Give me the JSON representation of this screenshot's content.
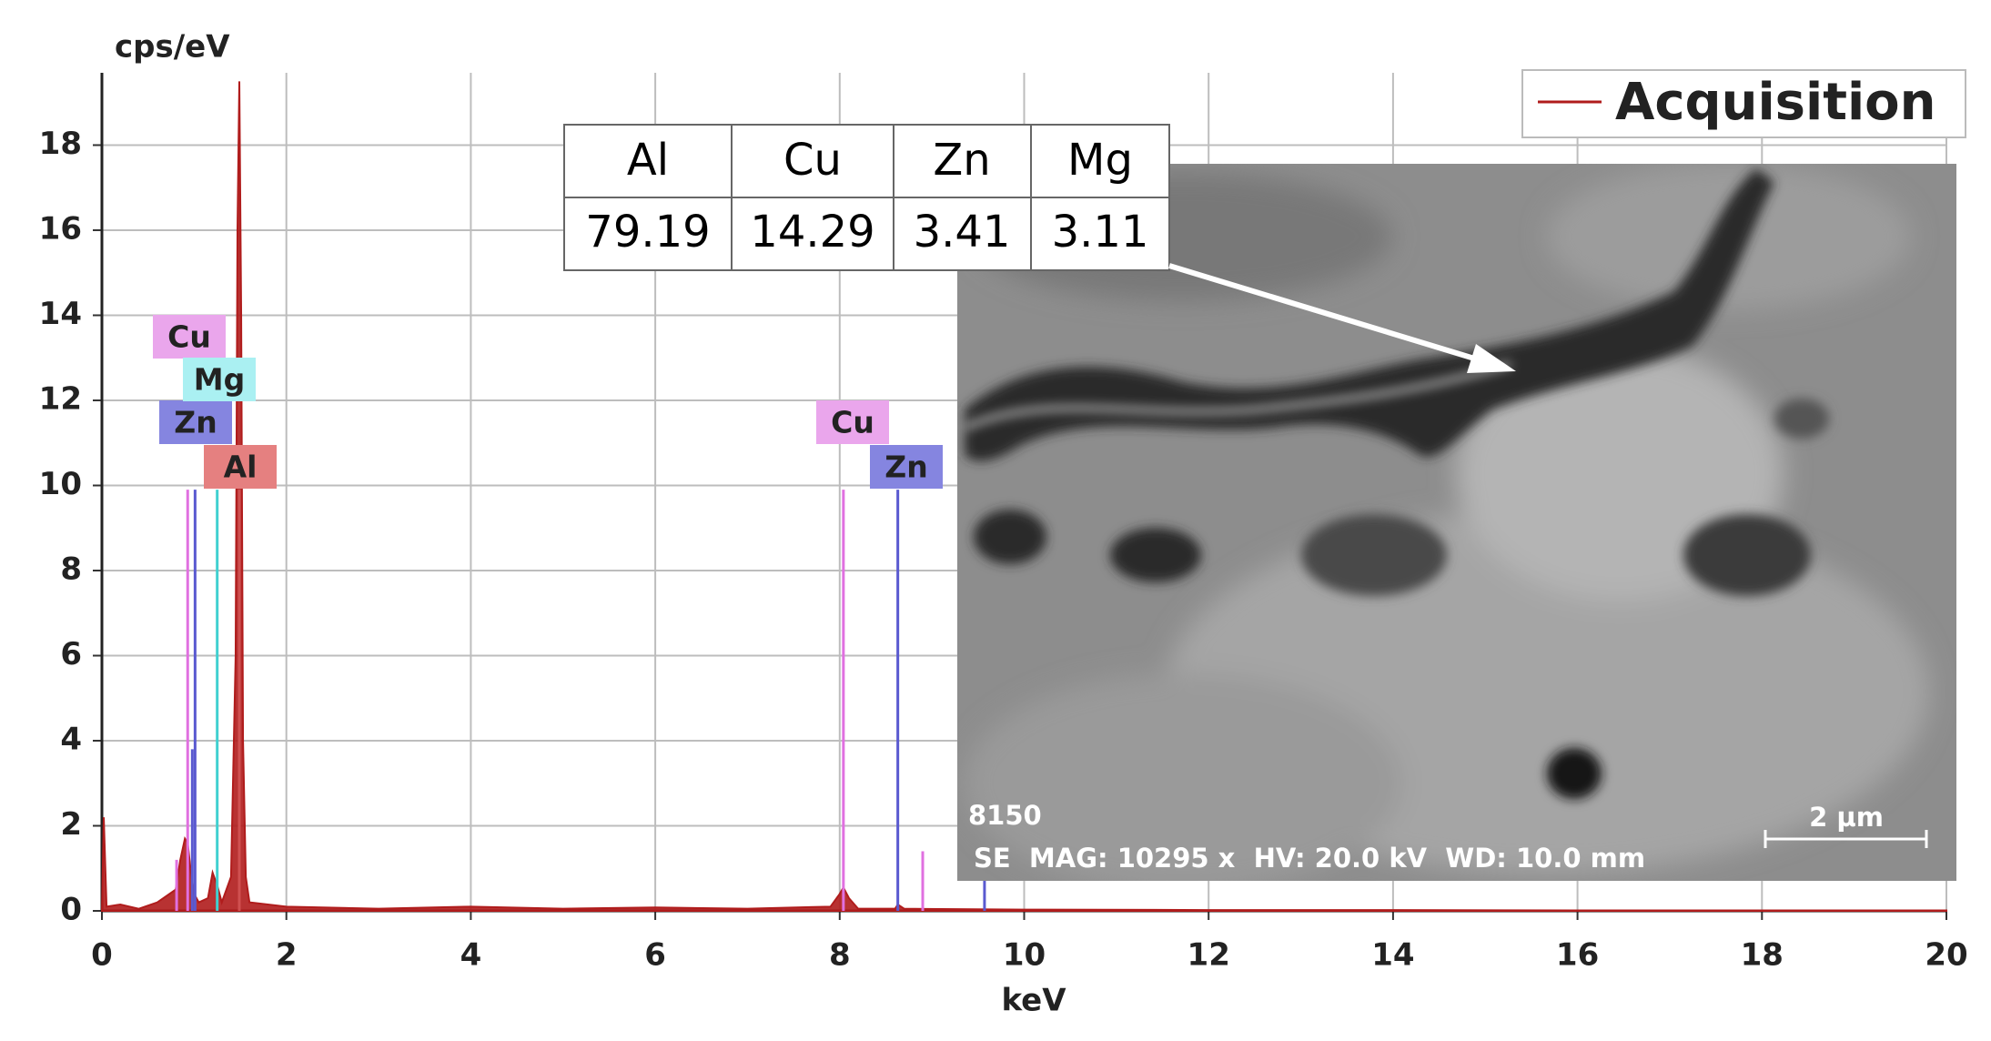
{
  "chart_data": {
    "type": "area",
    "ylabel": "cps/eV",
    "xlabel": "keV",
    "xlim": [
      0,
      20
    ],
    "ylim": [
      0,
      19.7
    ],
    "xticks": [
      0,
      2,
      4,
      6,
      8,
      10,
      12,
      14,
      16,
      18,
      20
    ],
    "yticks": [
      0,
      2,
      4,
      6,
      8,
      10,
      12,
      14,
      16,
      18
    ],
    "grid": true,
    "legend": "top-right",
    "x": [
      0,
      0.02,
      0.05,
      0.2,
      0.4,
      0.6,
      0.8,
      0.85,
      0.9,
      0.93,
      0.96,
      1.0,
      1.05,
      1.15,
      1.2,
      1.25,
      1.3,
      1.4,
      1.45,
      1.47,
      1.49,
      1.51,
      1.53,
      1.56,
      1.6,
      2,
      3,
      4,
      5,
      6,
      7,
      7.9,
      8.0,
      8.04,
      8.1,
      8.2,
      8.6,
      8.63,
      8.7,
      10,
      12,
      14,
      16,
      18,
      20
    ],
    "series": [
      {
        "name": "Acquisition",
        "color": "#b01c1c",
        "values": [
          0,
          2.2,
          0.1,
          0.15,
          0.05,
          0.2,
          0.5,
          1.2,
          1.7,
          1.6,
          1.0,
          0.4,
          0.2,
          0.3,
          0.9,
          0.6,
          0.2,
          0.8,
          6,
          16,
          19.5,
          14,
          4,
          0.8,
          0.2,
          0.1,
          0.05,
          0.1,
          0.05,
          0.08,
          0.05,
          0.1,
          0.4,
          0.55,
          0.3,
          0.05,
          0.05,
          0.15,
          0.05,
          0.03,
          0.02,
          0.02,
          0.01,
          0.01,
          0.01
        ]
      }
    ],
    "markers": [
      {
        "label": "Cu",
        "x": 0.93,
        "height": 9.9,
        "color": "#e070e0",
        "bg": "#eaa6ec"
      },
      {
        "label": "Zn",
        "x": 1.01,
        "height": 9.9,
        "color": "#5a5ad0",
        "bg": "#8585e0"
      },
      {
        "label": "Mg",
        "x": 1.25,
        "height": 9.9,
        "color": "#40d0d0",
        "bg": "#aaf0f2"
      },
      {
        "label": "Al",
        "x": 1.49,
        "height": 9.9,
        "color": "#d05050",
        "bg": "#e58080"
      },
      {
        "label": "Cu",
        "x": 8.04,
        "height": 9.9,
        "color": "#e070e0",
        "bg": "#eaa6ec"
      },
      {
        "label": "Zn",
        "x": 8.63,
        "height": 9.9,
        "color": "#5a5ad0",
        "bg": "#8585e0"
      }
    ],
    "lines": [
      {
        "x": 0.81,
        "height": 1.2,
        "color": "#e070e0"
      },
      {
        "x": 0.98,
        "height": 3.8,
        "color": "#5a5ad0"
      },
      {
        "x": 8.9,
        "height": 1.4,
        "color": "#e070e0"
      },
      {
        "x": 9.57,
        "height": 0.8,
        "color": "#5a5ad0"
      }
    ]
  },
  "table": {
    "header": [
      "Al",
      "Cu",
      "Zn",
      "Mg"
    ],
    "rows": [
      [
        "79.19",
        "14.29",
        "3.41",
        "3.11"
      ]
    ]
  },
  "image": {
    "id": "8150",
    "caption": "SE  MAG: 10295 x  HV: 20.0 kV  WD: 10.0 mm",
    "scale_bar": "2 µm"
  }
}
